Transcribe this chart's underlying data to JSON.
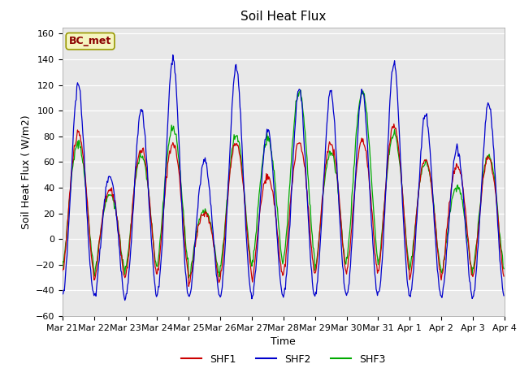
{
  "title": "Soil Heat Flux",
  "xlabel": "Time",
  "ylabel": "Soil Heat Flux ( W/m2)",
  "ylim": [
    -60,
    165
  ],
  "yticks": [
    -60,
    -40,
    -20,
    0,
    20,
    40,
    60,
    80,
    100,
    120,
    140,
    160
  ],
  "colors": {
    "SHF1": "#cc0000",
    "SHF2": "#0000cc",
    "SHF3": "#00aa00"
  },
  "annotation": "BC_met",
  "background_color": "#e8e8e8",
  "legend_entries": [
    "SHF1",
    "SHF2",
    "SHF3"
  ],
  "num_days": 14,
  "points_per_hour": 2,
  "tick_labels": [
    "Mar 21",
    "Mar 22",
    "Mar 23",
    "Mar 24",
    "Mar 25",
    "Mar 26",
    "Mar 27",
    "Mar 28",
    "Mar 29",
    "Mar 30",
    "Mar 31",
    "Apr 1",
    "Apr 2",
    "Apr 3",
    "Apr 4"
  ],
  "shf1_night_trough": -38,
  "shf2_night_trough": -47,
  "shf3_night_trough": -32,
  "day_peaks_shf1": [
    82,
    38,
    70,
    75,
    20,
    75,
    48,
    75,
    75,
    77,
    88,
    62,
    57,
    63
  ],
  "day_peaks_shf2": [
    121,
    50,
    101,
    141,
    62,
    135,
    85,
    118,
    115,
    116,
    138,
    98,
    71,
    107
  ],
  "day_peaks_shf3": [
    75,
    35,
    65,
    87,
    22,
    80,
    78,
    115,
    68,
    115,
    82,
    60,
    40,
    65
  ]
}
